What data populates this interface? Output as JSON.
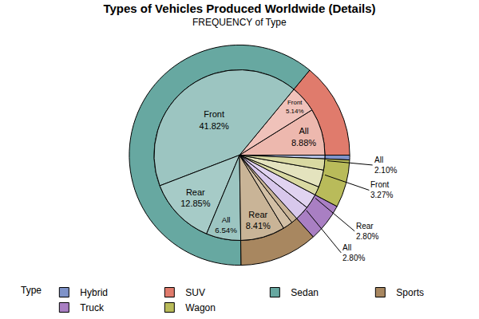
{
  "chart_data": {
    "type": "pie",
    "title": "Types of Vehicles Produced Worldwide (Details)",
    "subtitle": "FREQUENCY of Type",
    "legend_title": "Type",
    "legend": "bottom",
    "series": [
      {
        "categories": [
          "Hybrid",
          "SUV",
          "Sedan",
          "Sports",
          "Truck",
          "Wagon"
        ],
        "values": [
          0.7,
          14.02,
          61.21,
          11.45,
          5.61,
          7.01
        ],
        "colors": [
          "#7F93C9",
          "#E07B6C",
          "#67A8A1",
          "#A88760",
          "#A97FC3",
          "#B9BB5A"
        ]
      },
      {
        "categories": [
          null,
          "All",
          "Front",
          "Front",
          "Rear",
          "All",
          "Rear",
          null,
          null,
          "All",
          "Rear",
          null,
          "Front",
          "All"
        ],
        "values": [
          0.7,
          8.88,
          5.14,
          41.82,
          12.85,
          6.54,
          8.41,
          1.87,
          1.17,
          2.8,
          2.8,
          1.64,
          3.27,
          2.1
        ],
        "value_labels": [
          null,
          "8.88%",
          "5.14%",
          "41.82%",
          "12.85%",
          "6.54%",
          "8.41%",
          null,
          null,
          "2.80%",
          "2.80%",
          null,
          "3.27%",
          "2.10%"
        ],
        "colors": [
          "#B3C0E3",
          "#EDB8AE",
          "#F0C2BA",
          "#9CC5C1",
          "#A6CBC7",
          "#9CC5C1",
          "#C9B497",
          "#D2BFA5",
          "#C9B497",
          "#D8C8EC",
          "#E0D3F0",
          "#D9D9A2",
          "#E4E3BE",
          "#D9D9A2"
        ]
      }
    ]
  }
}
